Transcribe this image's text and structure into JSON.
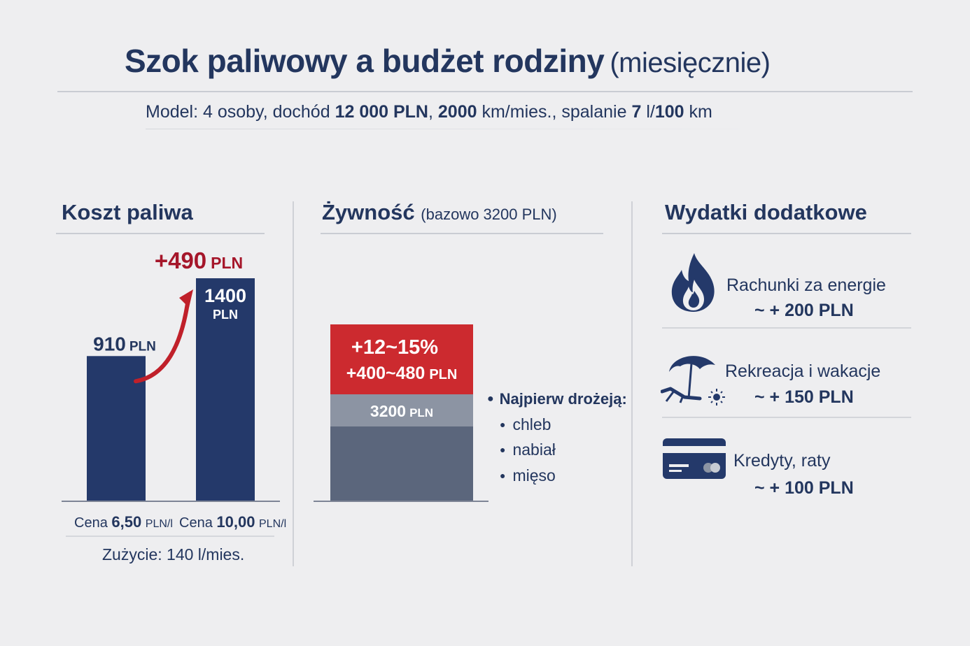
{
  "header": {
    "title": "Szok paliwowy a budżet rodziny",
    "title_suffix": "(miesięcznie)",
    "model_prefix": "Model: 4 osoby, dochód",
    "model_income": "12 000 PLN",
    "model_sep1": ",",
    "model_km": "2000",
    "model_km_unit": "km/mies., spalanie",
    "model_burn": "7",
    "model_burn_unit": "l/",
    "model_burn_base": "100",
    "model_burn_end": "km"
  },
  "fuel": {
    "heading": "Koszt paliwa",
    "bars": [
      {
        "value": 910,
        "label_value": "910",
        "label_unit": "PLN",
        "caption_prefix": "Cena",
        "caption_price": "6,50",
        "caption_unit": "PLN/l"
      },
      {
        "value": 1400,
        "label_value": "1400",
        "label_unit": "PLN",
        "caption_prefix": "Cena",
        "caption_price": "10,00",
        "caption_unit": "PLN/l"
      }
    ],
    "increase_value": "+490",
    "increase_unit": "PLN",
    "usage": "Zużycie: 140 l/mies.",
    "bar_color": "#24396a",
    "arrow_color": "#c0202a"
  },
  "food": {
    "heading": "Żywność",
    "heading_note": "(bazowo 3200 PLN)",
    "base_value": "3200",
    "base_unit": "PLN",
    "increase_pct": "+12~15%",
    "increase_amount": "+400~480",
    "increase_unit": "PLN",
    "list_heading": "Najpierw drożeją:",
    "items": [
      "chleb",
      "nabiał",
      "mięso"
    ],
    "base_color": "#5b667c",
    "base_top_color": "#8c94a3",
    "increase_color": "#cc2a2f"
  },
  "extras": {
    "heading": "Wydatki dodatkowe",
    "items": [
      {
        "icon": "flame-icon",
        "label": "Rachunki za energie",
        "value": "~ + 200 PLN"
      },
      {
        "icon": "beach-icon",
        "label": "Rekreacja i wakacje",
        "value": "~ + 150 PLN"
      },
      {
        "icon": "credit-card-icon",
        "label": "Kredyty, raty",
        "value": "~ + 100 PLN"
      }
    ]
  },
  "chart_data": [
    {
      "type": "bar",
      "title": "Koszt paliwa",
      "categories": [
        "Cena 6,50 PLN/l",
        "Cena 10,00 PLN/l"
      ],
      "values": [
        910,
        1400
      ],
      "annotations": [
        "+490 PLN"
      ],
      "xlabel": "",
      "ylabel": ""
    },
    {
      "type": "bar",
      "title": "Żywność",
      "categories": [
        "Żywność"
      ],
      "series": [
        {
          "name": "",
          "values": [
            3200
          ]
        },
        {
          "name": "",
          "values": [
            440
          ]
        }
      ],
      "annotations": [
        "+12~15%",
        "+400~480 PLN"
      ]
    }
  ]
}
